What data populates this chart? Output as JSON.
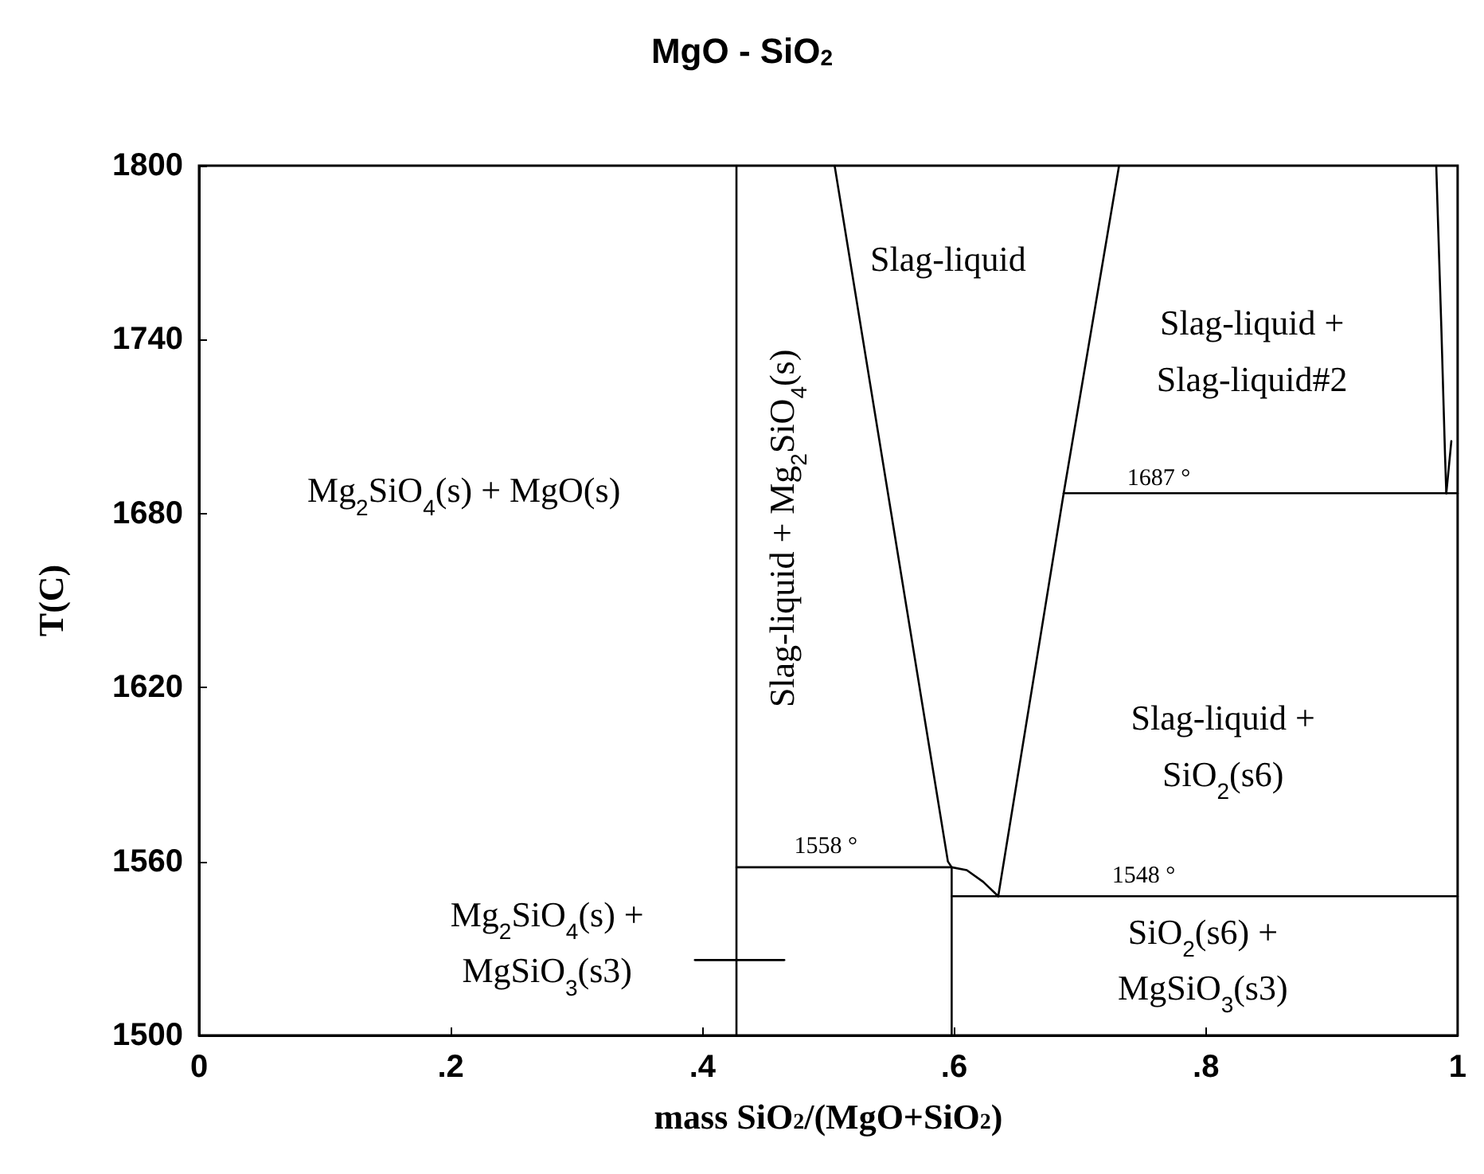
{
  "chart_data": {
    "type": "line",
    "title": "MgO - SiO$_{2}$",
    "xlabel": "mass SiO$_{2}$/(MgO+SiO$_{2}$)",
    "ylabel": "T(C)",
    "xlim": [
      0,
      1
    ],
    "ylim": [
      1500,
      1800
    ],
    "xticks": [
      0,
      {
        "value": 0.2,
        "label": ".2"
      },
      {
        "value": 0.4,
        "label": ".4"
      },
      {
        "value": 0.6,
        "label": ".6"
      },
      {
        "value": 0.8,
        "label": ".8"
      },
      1
    ],
    "yticks": [
      1500,
      1560,
      1620,
      1680,
      1740,
      1800
    ],
    "grid": false,
    "marker": "none",
    "line_style": "solid",
    "series": [
      {
        "color": "#000000",
        "x": [
          0.427,
          0.427
        ],
        "values": [
          1500,
          1800
        ]
      },
      {
        "color": "#000000",
        "x": [
          0.505,
          0.55,
          0.595,
          0.598,
          0.61,
          0.623,
          0.635
        ],
        "values": [
          1800,
          1680,
          1560,
          1558,
          1557,
          1553,
          1548
        ]
      },
      {
        "color": "#000000",
        "x": [
          0.635,
          0.687,
          0.731
        ],
        "values": [
          1548,
          1687,
          1800
        ]
      },
      {
        "color": "#000000",
        "x": [
          0.687,
          1
        ],
        "values": [
          1687,
          1687
        ]
      },
      {
        "color": "#000000",
        "x": [
          0.427,
          0.598
        ],
        "values": [
          1558,
          1558
        ]
      },
      {
        "color": "#000000",
        "x": [
          0.598,
          1
        ],
        "values": [
          1548,
          1548
        ]
      },
      {
        "color": "#000000",
        "x": [
          0.598,
          0.598
        ],
        "values": [
          1500,
          1558
        ]
      },
      {
        "color": "#000000",
        "x": [
          0.394,
          0.465
        ],
        "values": [
          1526,
          1526
        ]
      },
      {
        "color": "#000000",
        "x": [
          0.983,
          0.987,
          0.99,
          0.991
        ],
        "values": [
          1800,
          1745,
          1700,
          1687
        ]
      },
      {
        "color": "#000000",
        "x": [
          0.991,
          0.995
        ],
        "values": [
          1687,
          1705
        ]
      }
    ],
    "annotations": [
      "Mg$_{2}$SiO$_{4}$(s) + MgO(s)",
      "Slag-liquid + Mg$_{2}$SiO$_{4}$(s)",
      "Slag-liquid",
      "Slag-liquid +\nSlag-liquid#2",
      "Slag-liquid +\nSiO$_{2}$(s6)",
      "Mg$_{2}$SiO$_{4}$(s) +\nMgSiO$_{3}$(s3)",
      "SiO$_{2}$(s6) +\nMgSiO$_{3}$(s3)",
      "1687 °",
      "1558 °",
      "1548 °"
    ]
  }
}
